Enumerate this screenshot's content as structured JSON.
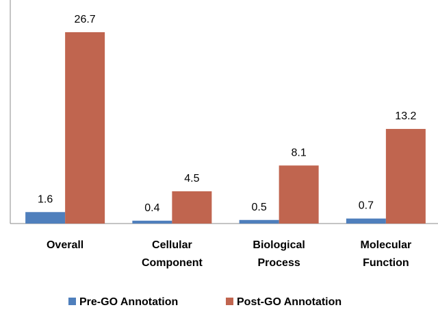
{
  "chart_data": {
    "type": "bar",
    "categories": [
      "Overall",
      "Cellular Component",
      "Biological Process",
      "Molecular Function"
    ],
    "series": [
      {
        "name": "Pre-GO Annotation",
        "color": "#4f7fbc",
        "values": [
          1.6,
          0.4,
          0.5,
          0.7
        ]
      },
      {
        "name": "Post-GO Annotation",
        "color": "#c0654f",
        "values": [
          26.7,
          4.5,
          8.1,
          13.2
        ]
      }
    ],
    "ylim": [
      0,
      31
    ],
    "legend": "bottom"
  }
}
